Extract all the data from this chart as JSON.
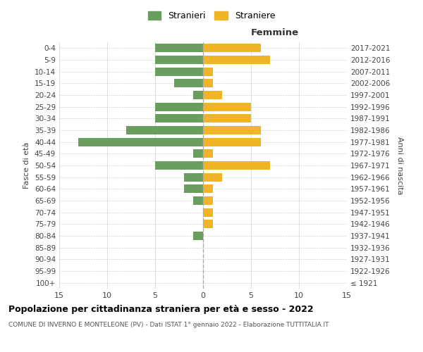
{
  "age_groups": [
    "100+",
    "95-99",
    "90-94",
    "85-89",
    "80-84",
    "75-79",
    "70-74",
    "65-69",
    "60-64",
    "55-59",
    "50-54",
    "45-49",
    "40-44",
    "35-39",
    "30-34",
    "25-29",
    "20-24",
    "15-19",
    "10-14",
    "5-9",
    "0-4"
  ],
  "birth_years": [
    "≤ 1921",
    "1922-1926",
    "1927-1931",
    "1932-1936",
    "1937-1941",
    "1942-1946",
    "1947-1951",
    "1952-1956",
    "1957-1961",
    "1962-1966",
    "1967-1971",
    "1972-1976",
    "1977-1981",
    "1982-1986",
    "1987-1991",
    "1992-1996",
    "1997-2001",
    "2002-2006",
    "2007-2011",
    "2012-2016",
    "2017-2021"
  ],
  "males": [
    0,
    0,
    0,
    0,
    1,
    0,
    0,
    1,
    2,
    2,
    5,
    1,
    13,
    8,
    5,
    5,
    1,
    3,
    5,
    5,
    5
  ],
  "females": [
    0,
    0,
    0,
    0,
    0,
    1,
    1,
    1,
    1,
    2,
    7,
    1,
    6,
    6,
    5,
    5,
    2,
    1,
    1,
    7,
    6
  ],
  "male_color": "#6a9e5f",
  "female_color": "#f0b429",
  "title": "Popolazione per cittadinanza straniera per età e sesso - 2022",
  "subtitle": "COMUNE DI INVERNO E MONTELEONE (PV) - Dati ISTAT 1° gennaio 2022 - Elaborazione TUTTITALIA.IT",
  "ylabel_left": "Fasce di età",
  "ylabel_right": "Anni di nascita",
  "xlabel_right": "Femmine",
  "legend_male": "Stranieri",
  "legend_female": "Straniere",
  "xlim": 15,
  "background_color": "#ffffff",
  "grid_color": "#d0d0d0"
}
